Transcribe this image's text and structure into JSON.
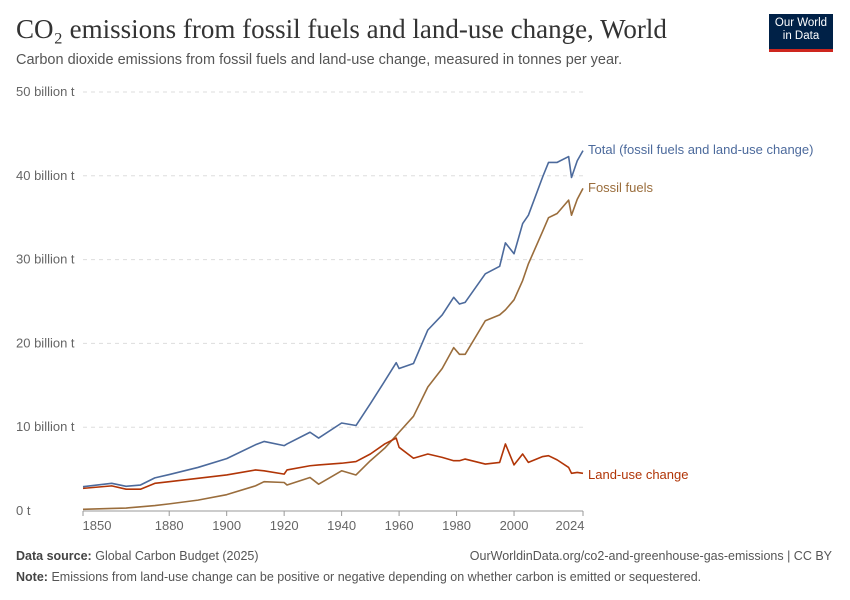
{
  "header": {
    "title": "CO₂ emissions from fossil fuels and land-use change, World",
    "subtitle": "Carbon dioxide emissions from fossil fuels and land-use change, measured in tonnes per year.",
    "logo": "Our World in Data"
  },
  "footer": {
    "source_label": "Data source:",
    "source": "Global Carbon Budget (2025)",
    "url": "OurWorldinData.org/co2-and-greenhouse-gas-emissions | CC BY",
    "note_label": "Note:",
    "note": "Emissions from land-use change can be positive or negative depending on whether carbon is emitted or sequestered."
  },
  "chart_data": {
    "type": "line",
    "xlim": [
      1850,
      2024
    ],
    "ylim": [
      0,
      50
    ],
    "yunit": "billion t",
    "yticks": [
      {
        "v": 0,
        "label": "0 t"
      },
      {
        "v": 10,
        "label": "10 billion t"
      },
      {
        "v": 20,
        "label": "20 billion t"
      },
      {
        "v": 30,
        "label": "30 billion t"
      },
      {
        "v": 40,
        "label": "40 billion t"
      },
      {
        "v": 50,
        "label": "50 billion t"
      }
    ],
    "xticks": [
      1850,
      1880,
      1900,
      1920,
      1940,
      1960,
      1980,
      2000,
      2024
    ],
    "grid": "horizontal dashed",
    "x": [
      1850,
      1860,
      1865,
      1870,
      1875,
      1880,
      1890,
      1900,
      1910,
      1913,
      1920,
      1921,
      1929,
      1932,
      1940,
      1945,
      1950,
      1955,
      1959,
      1960,
      1965,
      1970,
      1975,
      1979,
      1981,
      1983,
      1990,
      1995,
      1997,
      2000,
      2003,
      2005,
      2010,
      2012,
      2015,
      2019,
      2020,
      2022,
      2024
    ],
    "series": [
      {
        "name": "Total (fossil fuels and land-use change)",
        "color": "#4c6a9c",
        "values": [
          2.9,
          3.3,
          2.95,
          3.1,
          3.95,
          4.35,
          5.2,
          6.25,
          7.9,
          8.3,
          7.8,
          8.0,
          9.4,
          8.7,
          10.5,
          10.2,
          12.8,
          15.5,
          17.7,
          17.0,
          17.6,
          21.6,
          23.4,
          25.5,
          24.7,
          24.9,
          28.3,
          29.2,
          32.0,
          30.7,
          34.3,
          35.3,
          39.9,
          41.6,
          41.6,
          42.3,
          39.8,
          41.8,
          43.0
        ]
      },
      {
        "name": "Fossil fuels",
        "color": "#9a6d3c",
        "values": [
          0.2,
          0.3,
          0.35,
          0.5,
          0.65,
          0.85,
          1.3,
          1.95,
          3.0,
          3.5,
          3.4,
          3.1,
          4.0,
          3.2,
          4.8,
          4.3,
          6.0,
          7.5,
          9.0,
          9.4,
          11.3,
          14.8,
          17.0,
          19.5,
          18.7,
          18.7,
          22.7,
          23.4,
          24.0,
          25.2,
          27.5,
          29.5,
          33.4,
          35.0,
          35.5,
          37.1,
          35.3,
          37.2,
          38.5
        ]
      },
      {
        "name": "Land-use change",
        "color": "#b13507",
        "values": [
          2.7,
          3.0,
          2.6,
          2.6,
          3.3,
          3.5,
          3.9,
          4.3,
          4.9,
          4.8,
          4.4,
          4.9,
          5.4,
          5.5,
          5.7,
          5.9,
          6.8,
          8.0,
          8.7,
          7.6,
          6.3,
          6.8,
          6.4,
          6.0,
          6.0,
          6.2,
          5.6,
          5.8,
          8.0,
          5.5,
          6.8,
          5.8,
          6.5,
          6.6,
          6.1,
          5.2,
          4.5,
          4.6,
          4.5
        ]
      }
    ]
  }
}
